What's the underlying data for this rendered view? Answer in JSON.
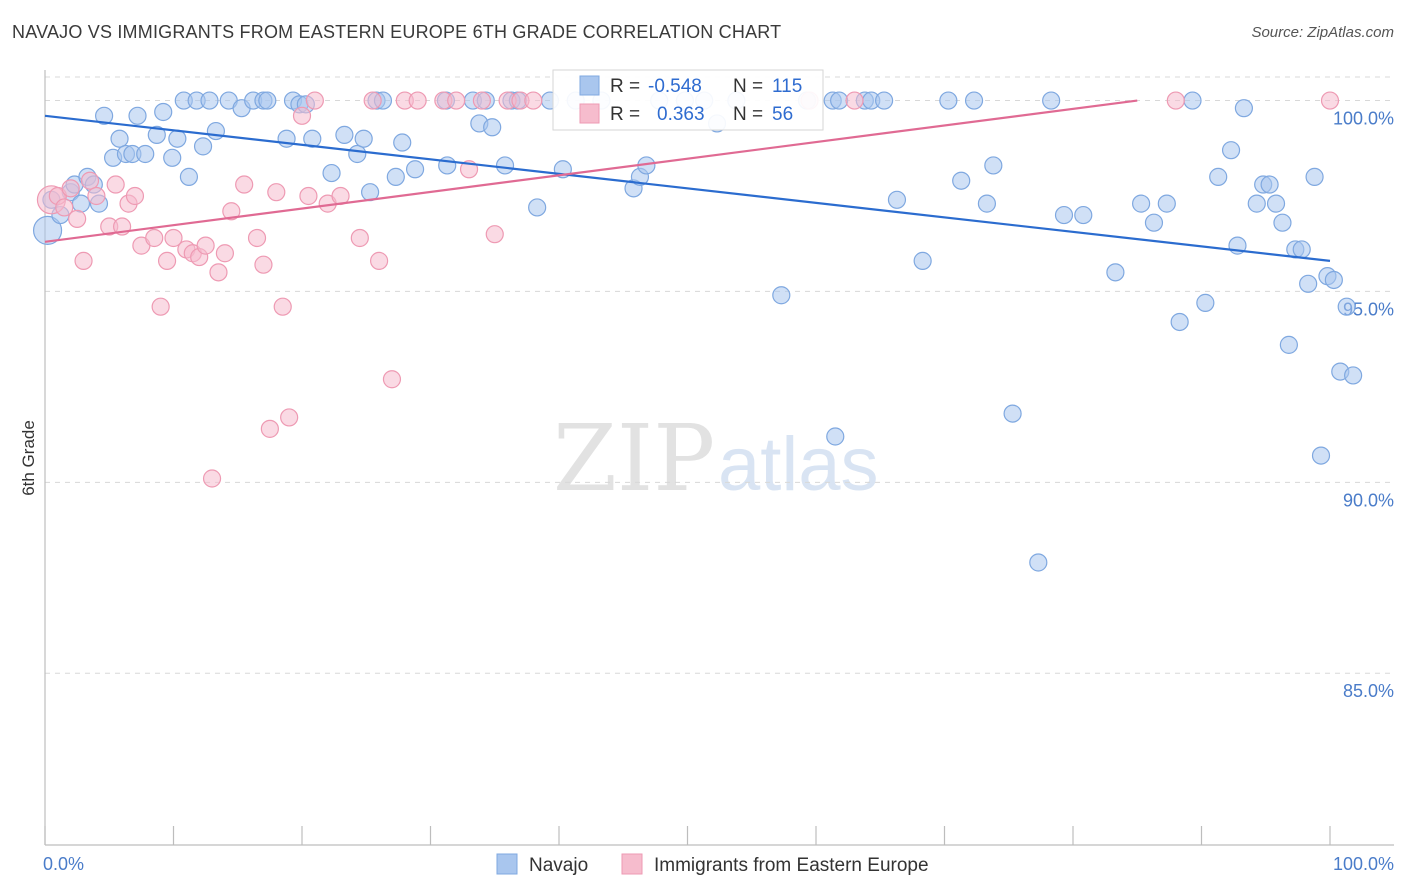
{
  "title": "NAVAJO VS IMMIGRANTS FROM EASTERN EUROPE 6TH GRADE CORRELATION CHART",
  "source": "Source: ZipAtlas.com",
  "watermark": {
    "zip": "ZIP",
    "atlas": "atlas"
  },
  "colors": {
    "navajo_fill": "#a9c6ee",
    "navajo_stroke": "#7fa8e0",
    "navajo_line": "#2b6ccf",
    "immig_fill": "#f6bccd",
    "immig_stroke": "#ee9ab3",
    "immig_line": "#e06a93",
    "tick_text": "#4a7cc9",
    "grid": "#d8d8d8"
  },
  "stats": {
    "r_label": "R =",
    "n_label": "N =",
    "navajo": {
      "r": "-0.548",
      "n": "115"
    },
    "immig": {
      "r": "0.363",
      "n": "56"
    }
  },
  "chart_data": {
    "type": "scatter",
    "title": "NAVAJO VS IMMIGRANTS FROM EASTERN EUROPE 6TH GRADE CORRELATION CHART",
    "xlabel": "",
    "ylabel": "6th Grade",
    "xlim": [
      0,
      100
    ],
    "ylim": [
      80.5,
      100.8
    ],
    "x_tick_labels": [
      "0.0%",
      "100.0%"
    ],
    "y_ticks": [
      100,
      95,
      90,
      85
    ],
    "y_tick_labels": [
      "100.0%",
      "95.0%",
      "90.0%",
      "85.0%"
    ],
    "grid": "horizontal dashed",
    "legend_position": "bottom",
    "series": [
      {
        "name": "Navajo",
        "color": "#a9c6ee",
        "trend": {
          "x": [
            0,
            100
          ],
          "y": [
            99.6,
            95.8
          ]
        },
        "points": [
          [
            0.2,
            96.6
          ],
          [
            0.5,
            97.4
          ],
          [
            1.2,
            97.0
          ],
          [
            2.0,
            97.6
          ],
          [
            2.3,
            97.8
          ],
          [
            2.8,
            97.3
          ],
          [
            3.3,
            98.0
          ],
          [
            3.8,
            97.8
          ],
          [
            4.2,
            97.3
          ],
          [
            4.6,
            99.6
          ],
          [
            5.3,
            98.5
          ],
          [
            5.8,
            99.0
          ],
          [
            6.3,
            98.6
          ],
          [
            6.8,
            98.6
          ],
          [
            7.2,
            99.6
          ],
          [
            7.8,
            98.6
          ],
          [
            8.7,
            99.1
          ],
          [
            9.2,
            99.7
          ],
          [
            9.9,
            98.5
          ],
          [
            10.3,
            99.0
          ],
          [
            10.8,
            100.0
          ],
          [
            11.2,
            98.0
          ],
          [
            11.8,
            100.0
          ],
          [
            12.3,
            98.8
          ],
          [
            12.8,
            100.0
          ],
          [
            13.3,
            99.2
          ],
          [
            14.3,
            100.0
          ],
          [
            15.3,
            99.8
          ],
          [
            16.2,
            100.0
          ],
          [
            17.0,
            100.0
          ],
          [
            17.3,
            100.0
          ],
          [
            18.8,
            99.0
          ],
          [
            19.3,
            100.0
          ],
          [
            19.8,
            99.9
          ],
          [
            20.3,
            99.9
          ],
          [
            20.8,
            99.0
          ],
          [
            22.3,
            98.1
          ],
          [
            23.3,
            99.1
          ],
          [
            24.3,
            98.6
          ],
          [
            24.8,
            99.0
          ],
          [
            25.3,
            97.6
          ],
          [
            25.8,
            100.0
          ],
          [
            26.3,
            100.0
          ],
          [
            27.3,
            98.0
          ],
          [
            27.8,
            98.9
          ],
          [
            28.8,
            98.2
          ],
          [
            31.2,
            100.0
          ],
          [
            31.3,
            98.3
          ],
          [
            33.3,
            100.0
          ],
          [
            33.8,
            99.4
          ],
          [
            34.3,
            100.0
          ],
          [
            34.8,
            99.3
          ],
          [
            35.8,
            98.3
          ],
          [
            36.3,
            100.0
          ],
          [
            36.8,
            100.0
          ],
          [
            38.3,
            97.2
          ],
          [
            39.3,
            100.0
          ],
          [
            40.3,
            98.2
          ],
          [
            41.3,
            100.0
          ],
          [
            43.3,
            100.0
          ],
          [
            45.8,
            97.7
          ],
          [
            46.3,
            98.0
          ],
          [
            46.8,
            98.3
          ],
          [
            47.8,
            100.0
          ],
          [
            49.8,
            100.0
          ],
          [
            51.3,
            100.0
          ],
          [
            52.3,
            99.4
          ],
          [
            53.8,
            100.0
          ],
          [
            57.3,
            94.9
          ],
          [
            59.3,
            100.0
          ],
          [
            61.3,
            100.0
          ],
          [
            61.5,
            91.2
          ],
          [
            61.8,
            100.0
          ],
          [
            63.8,
            100.0
          ],
          [
            64.3,
            100.0
          ],
          [
            65.3,
            100.0
          ],
          [
            66.3,
            97.4
          ],
          [
            68.3,
            95.8
          ],
          [
            70.3,
            100.0
          ],
          [
            71.3,
            97.9
          ],
          [
            72.3,
            100.0
          ],
          [
            73.3,
            97.3
          ],
          [
            73.8,
            98.3
          ],
          [
            75.3,
            91.8
          ],
          [
            77.3,
            87.9
          ],
          [
            78.3,
            100.0
          ],
          [
            79.3,
            97.0
          ],
          [
            80.8,
            97.0
          ],
          [
            83.3,
            95.5
          ],
          [
            85.3,
            97.3
          ],
          [
            86.3,
            96.8
          ],
          [
            87.3,
            97.3
          ],
          [
            88.3,
            94.2
          ],
          [
            89.3,
            100.0
          ],
          [
            90.3,
            94.7
          ],
          [
            91.3,
            98.0
          ],
          [
            92.3,
            98.7
          ],
          [
            92.8,
            96.2
          ],
          [
            93.3,
            99.8
          ],
          [
            94.3,
            97.3
          ],
          [
            94.8,
            97.8
          ],
          [
            95.3,
            97.8
          ],
          [
            95.8,
            97.3
          ],
          [
            96.3,
            96.8
          ],
          [
            96.8,
            93.6
          ],
          [
            97.3,
            96.1
          ],
          [
            97.8,
            96.1
          ],
          [
            98.3,
            95.2
          ],
          [
            98.8,
            98.0
          ],
          [
            99.3,
            90.7
          ],
          [
            99.8,
            95.4
          ],
          [
            100.3,
            95.3
          ],
          [
            100.8,
            92.9
          ],
          [
            101.3,
            94.6
          ],
          [
            101.8,
            92.8
          ]
        ]
      },
      {
        "name": "Immigrants from Eastern Europe",
        "color": "#f6bccd",
        "trend": {
          "x": [
            0,
            85
          ],
          "y": [
            96.3,
            100.0
          ]
        },
        "points": [
          [
            0.5,
            97.4
          ],
          [
            1.0,
            97.5
          ],
          [
            1.5,
            97.2
          ],
          [
            2.0,
            97.7
          ],
          [
            2.5,
            96.9
          ],
          [
            3.0,
            95.8
          ],
          [
            3.5,
            97.9
          ],
          [
            4.0,
            97.5
          ],
          [
            5.0,
            96.7
          ],
          [
            5.5,
            97.8
          ],
          [
            6.0,
            96.7
          ],
          [
            6.5,
            97.3
          ],
          [
            7.0,
            97.5
          ],
          [
            7.5,
            96.2
          ],
          [
            8.5,
            96.4
          ],
          [
            9.0,
            94.6
          ],
          [
            9.5,
            95.8
          ],
          [
            10.0,
            96.4
          ],
          [
            11.0,
            96.1
          ],
          [
            11.5,
            96.0
          ],
          [
            12.0,
            95.9
          ],
          [
            12.5,
            96.2
          ],
          [
            13.0,
            90.1
          ],
          [
            13.5,
            95.5
          ],
          [
            14.0,
            96.0
          ],
          [
            14.5,
            97.1
          ],
          [
            15.5,
            97.8
          ],
          [
            16.5,
            96.4
          ],
          [
            17.0,
            95.7
          ],
          [
            17.5,
            91.4
          ],
          [
            18.0,
            97.6
          ],
          [
            18.5,
            94.6
          ],
          [
            19.0,
            91.7
          ],
          [
            20.0,
            99.6
          ],
          [
            20.5,
            97.5
          ],
          [
            21.0,
            100.0
          ],
          [
            22.0,
            97.3
          ],
          [
            23.0,
            97.5
          ],
          [
            24.5,
            96.4
          ],
          [
            25.5,
            100.0
          ],
          [
            26.0,
            95.8
          ],
          [
            27.0,
            92.7
          ],
          [
            28.0,
            100.0
          ],
          [
            29.0,
            100.0
          ],
          [
            31.0,
            100.0
          ],
          [
            32.0,
            100.0
          ],
          [
            33.0,
            98.2
          ],
          [
            34.0,
            100.0
          ],
          [
            35.0,
            96.5
          ],
          [
            36.0,
            100.0
          ],
          [
            37.0,
            100.0
          ],
          [
            38.0,
            100.0
          ],
          [
            59.5,
            100.0
          ],
          [
            63.0,
            100.0
          ],
          [
            88.0,
            100.0
          ],
          [
            100.0,
            100.0
          ]
        ]
      }
    ]
  },
  "legend": [
    {
      "label": "Navajo"
    },
    {
      "label": "Immigrants from Eastern Europe"
    }
  ]
}
